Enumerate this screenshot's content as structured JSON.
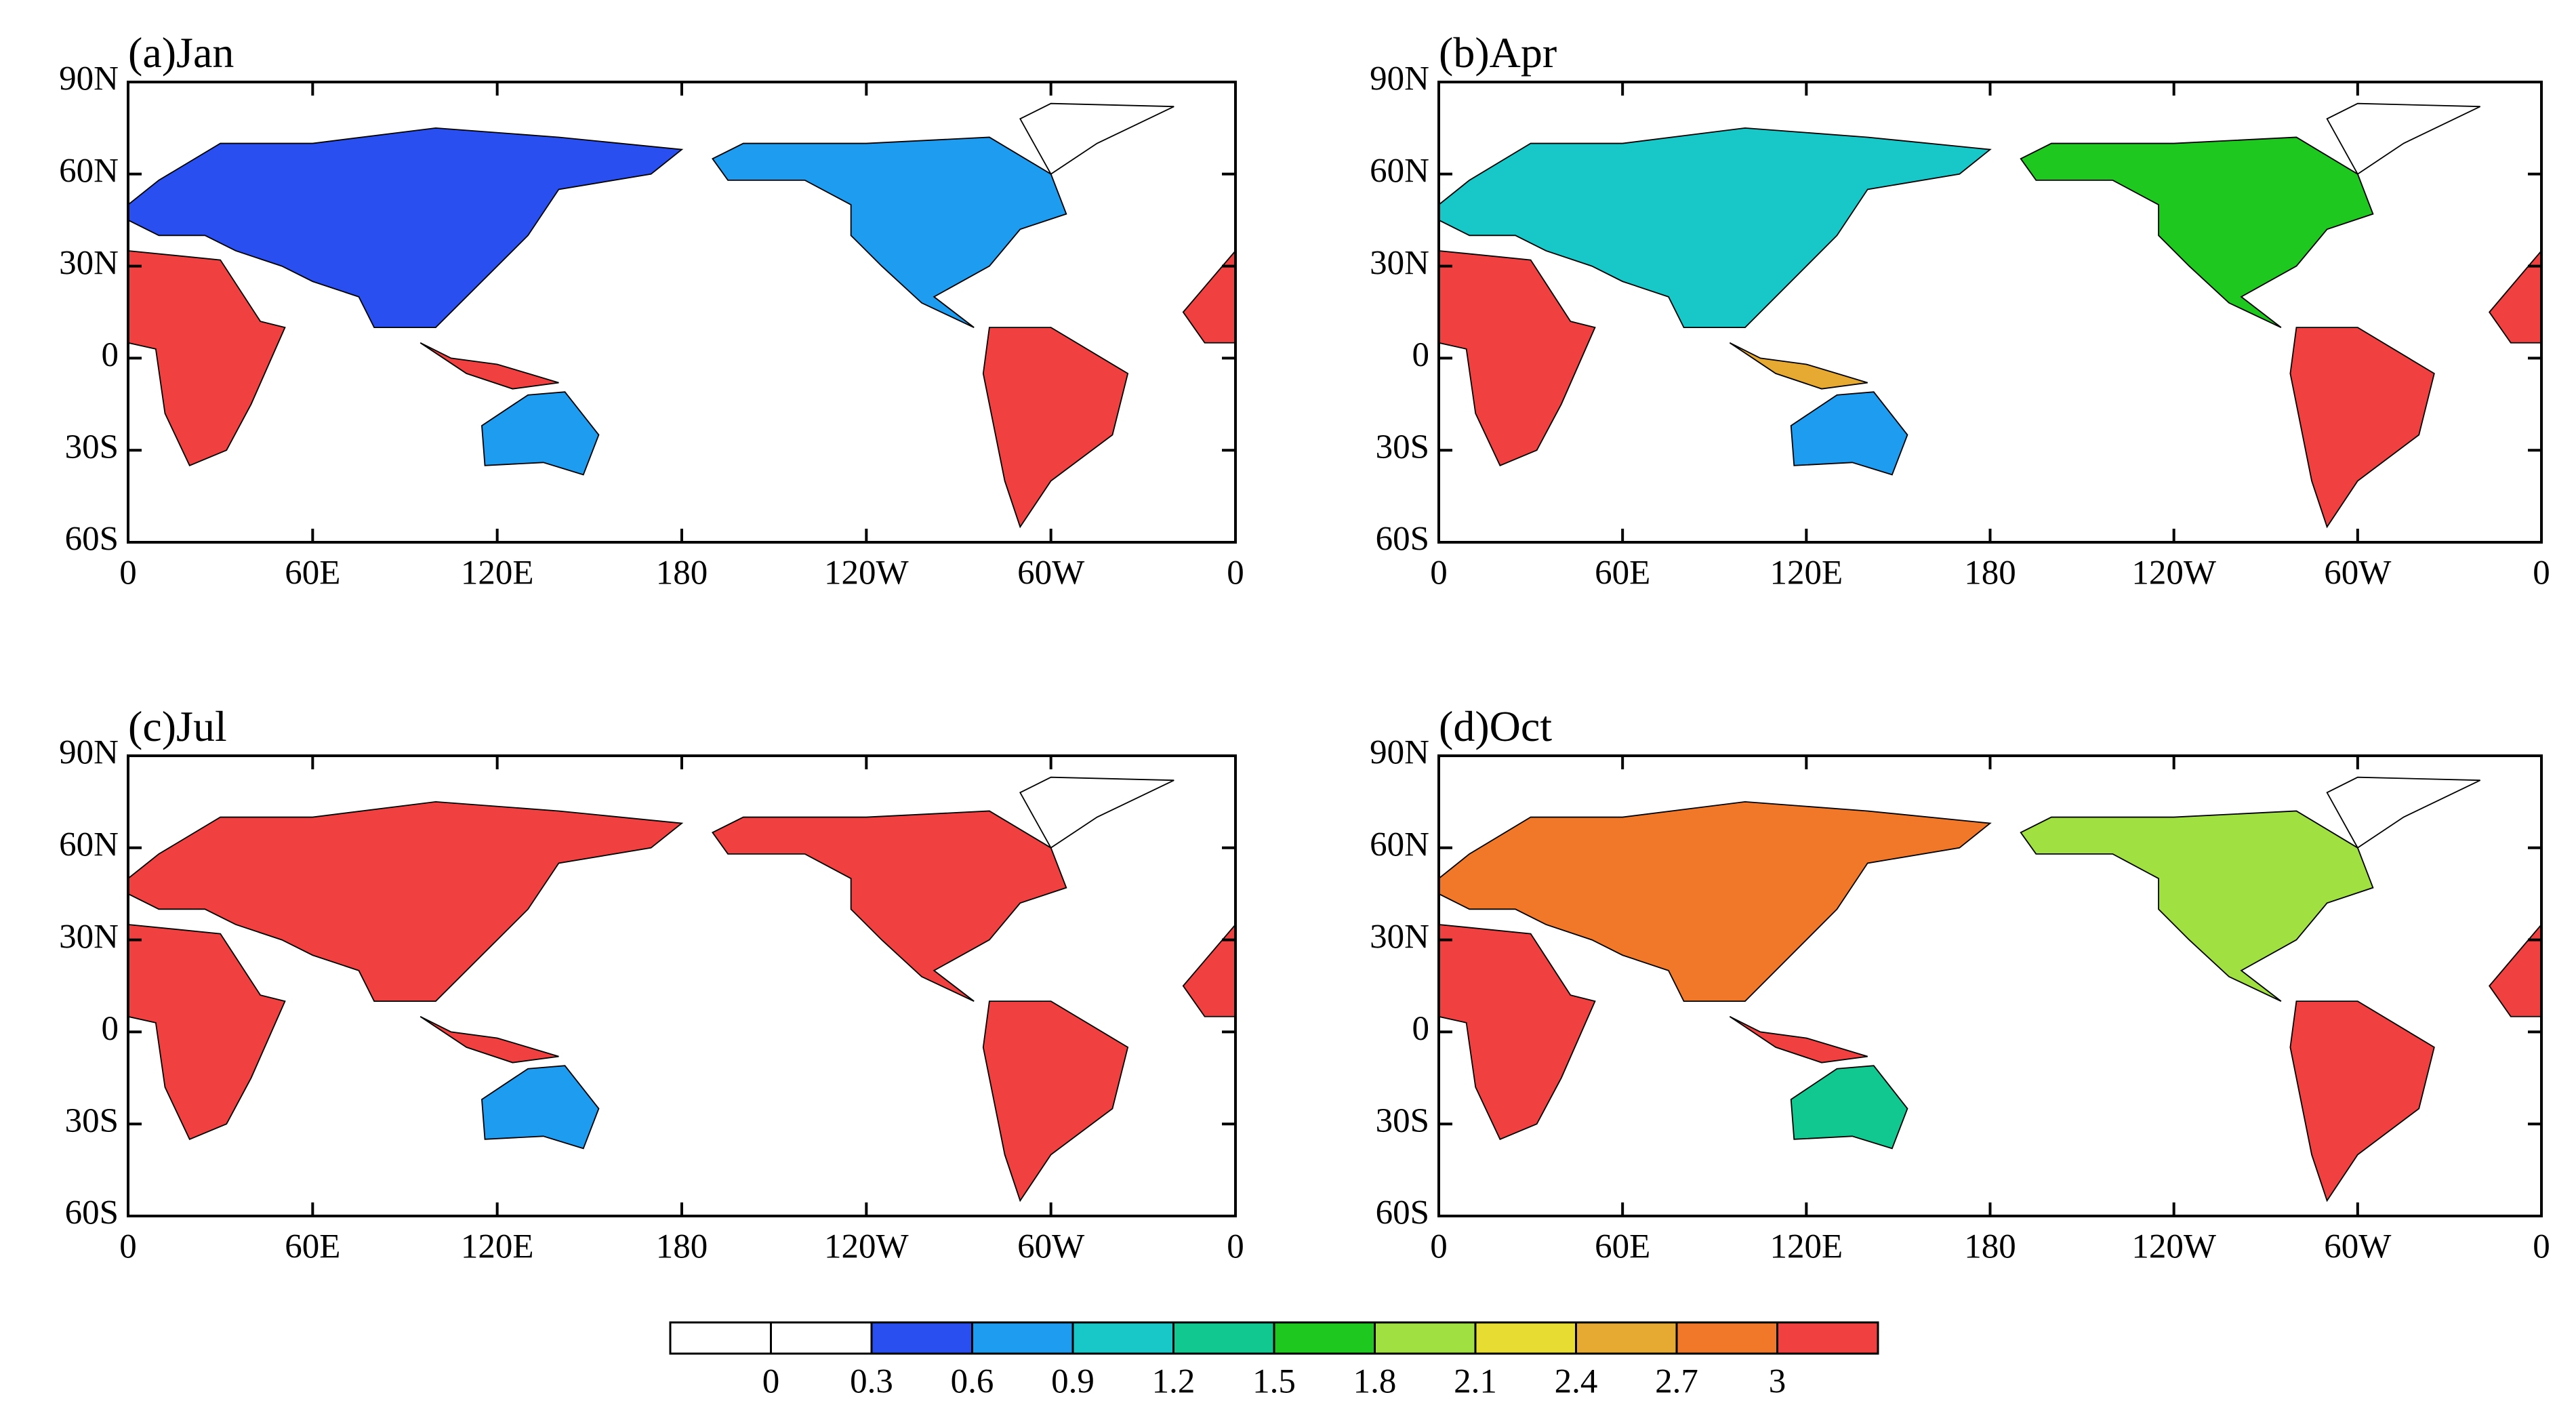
{
  "panels": [
    {
      "title": "(a)Jan"
    },
    {
      "title": "(b)Apr"
    },
    {
      "title": "(c)Jul"
    },
    {
      "title": "(d)Oct"
    }
  ],
  "xlim": [
    0,
    360
  ],
  "xticks": [
    0,
    {
      "value": 60,
      "label": "60E"
    },
    {
      "value": 120,
      "label": "120E"
    },
    180,
    {
      "value": 240,
      "label": "120W"
    },
    {
      "value": 300,
      "label": "60W"
    },
    {
      "value": 360,
      "label": "0"
    }
  ],
  "ylim": [
    -60,
    90
  ],
  "yticks": [
    {
      "value": 90,
      "label": "90N"
    },
    {
      "value": 60,
      "label": "60N"
    },
    {
      "value": 30,
      "label": "30N"
    },
    0,
    {
      "value": -30,
      "label": "30S"
    },
    {
      "value": -60,
      "label": "60S"
    }
  ],
  "colorbar": {
    "levels": [
      0,
      0.3,
      0.6,
      0.9,
      1.2,
      1.5,
      1.8,
      2.1,
      2.4,
      2.7,
      3
    ],
    "colors": [
      "#ffffff",
      "#ffffff",
      "#2a4ff0",
      "#1e9cf0",
      "#18c8c8",
      "#10c890",
      "#1ec81e",
      "#a0e040",
      "#e6dc32",
      "#e6aa32",
      "#f07828",
      "#f04040"
    ]
  }
}
